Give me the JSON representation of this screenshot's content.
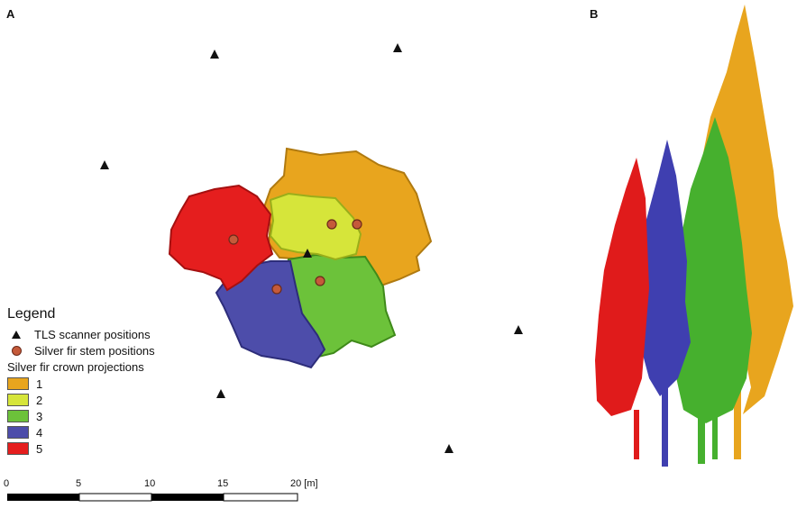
{
  "panels": {
    "a": "A",
    "b": "B"
  },
  "legend": {
    "title": "Legend",
    "scanner_label": "TLS scanner positions",
    "stem_label": "Silver fir stem positions",
    "crowns_title": "Silver fir crown projections",
    "crowns": [
      {
        "label": "1",
        "color": "#e8a51e"
      },
      {
        "label": "2",
        "color": "#d6e53a"
      },
      {
        "label": "3",
        "color": "#6cc23a"
      },
      {
        "label": "4",
        "color": "#4d4daa"
      },
      {
        "label": "5",
        "color": "#e51e1e"
      }
    ]
  },
  "scalebar": {
    "ticks": [
      "0",
      "5",
      "10",
      "15",
      "20 [m]"
    ]
  }
}
